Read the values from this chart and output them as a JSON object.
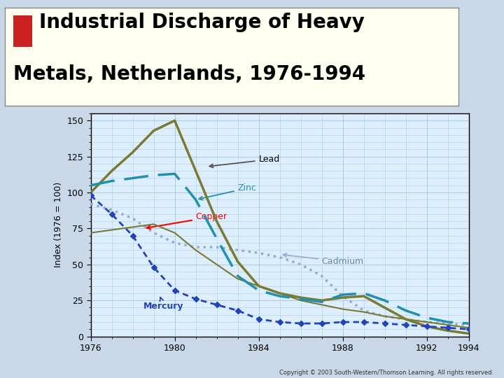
{
  "title_line1": "Industrial Discharge of Heavy",
  "title_line2": "Metals, Netherlands, 1976-1994",
  "ylabel": "Index (1976 = 100)",
  "bg_outer": "#c8d8e8",
  "bg_title": "#fffff0",
  "bg_plot": "#ddeeff",
  "grid_color": "#b0cce0",
  "copyright": "Copyright © 2003 South-Western/Thomson Learning. All rights reserved.",
  "lead": {
    "years": [
      1976,
      1977,
      1978,
      1979,
      1980,
      1981,
      1982,
      1983,
      1984,
      1985,
      1986,
      1987,
      1988,
      1989,
      1990,
      1991,
      1992,
      1993,
      1994
    ],
    "values": [
      100,
      115,
      128,
      143,
      150,
      115,
      80,
      52,
      35,
      30,
      27,
      25,
      27,
      28,
      20,
      12,
      7,
      4,
      2
    ],
    "color": "#7a7a30",
    "linewidth": 2.5
  },
  "zinc": {
    "years": [
      1976,
      1977,
      1978,
      1979,
      1980,
      1981,
      1982,
      1983,
      1984,
      1985,
      1986,
      1987,
      1988,
      1989,
      1990,
      1991,
      1992,
      1993,
      1994
    ],
    "values": [
      105,
      108,
      110,
      112,
      113,
      95,
      68,
      42,
      32,
      28,
      26,
      24,
      29,
      30,
      25,
      18,
      13,
      10,
      9
    ],
    "color": "#2090b0",
    "linewidth": 2.5
  },
  "copper": {
    "years": [
      1976,
      1977,
      1978,
      1979,
      1980,
      1981,
      1982,
      1983,
      1984,
      1985,
      1986,
      1987,
      1988,
      1989,
      1990,
      1991,
      1992,
      1993,
      1994
    ],
    "values": [
      72,
      74,
      76,
      78,
      72,
      60,
      50,
      40,
      35,
      30,
      25,
      22,
      19,
      17,
      14,
      12,
      10,
      8,
      6
    ],
    "color": "#7a7a30",
    "linewidth": 1.5
  },
  "cadmium": {
    "years": [
      1976,
      1977,
      1978,
      1979,
      1980,
      1981,
      1982,
      1983,
      1984,
      1985,
      1986,
      1987,
      1988,
      1989,
      1990,
      1991,
      1992,
      1993,
      1994
    ],
    "values": [
      92,
      88,
      82,
      72,
      65,
      62,
      62,
      60,
      58,
      55,
      50,
      42,
      28,
      18,
      14,
      12,
      10,
      9,
      8
    ],
    "color": "#9aaccc",
    "linewidth": 2.5
  },
  "mercury": {
    "years": [
      1976,
      1977,
      1978,
      1979,
      1980,
      1981,
      1982,
      1983,
      1984,
      1985,
      1986,
      1987,
      1988,
      1989,
      1990,
      1991,
      1992,
      1993,
      1994
    ],
    "values": [
      98,
      85,
      70,
      48,
      32,
      26,
      22,
      18,
      12,
      10,
      9,
      9,
      10,
      10,
      9,
      8,
      7,
      6,
      5
    ],
    "color": "#2244bb",
    "linewidth": 2.0
  },
  "ylim": [
    0,
    155
  ],
  "yticks": [
    0,
    25,
    50,
    75,
    100,
    125,
    150
  ],
  "xticks": [
    1976,
    1980,
    1984,
    1988,
    1992,
    1994
  ]
}
